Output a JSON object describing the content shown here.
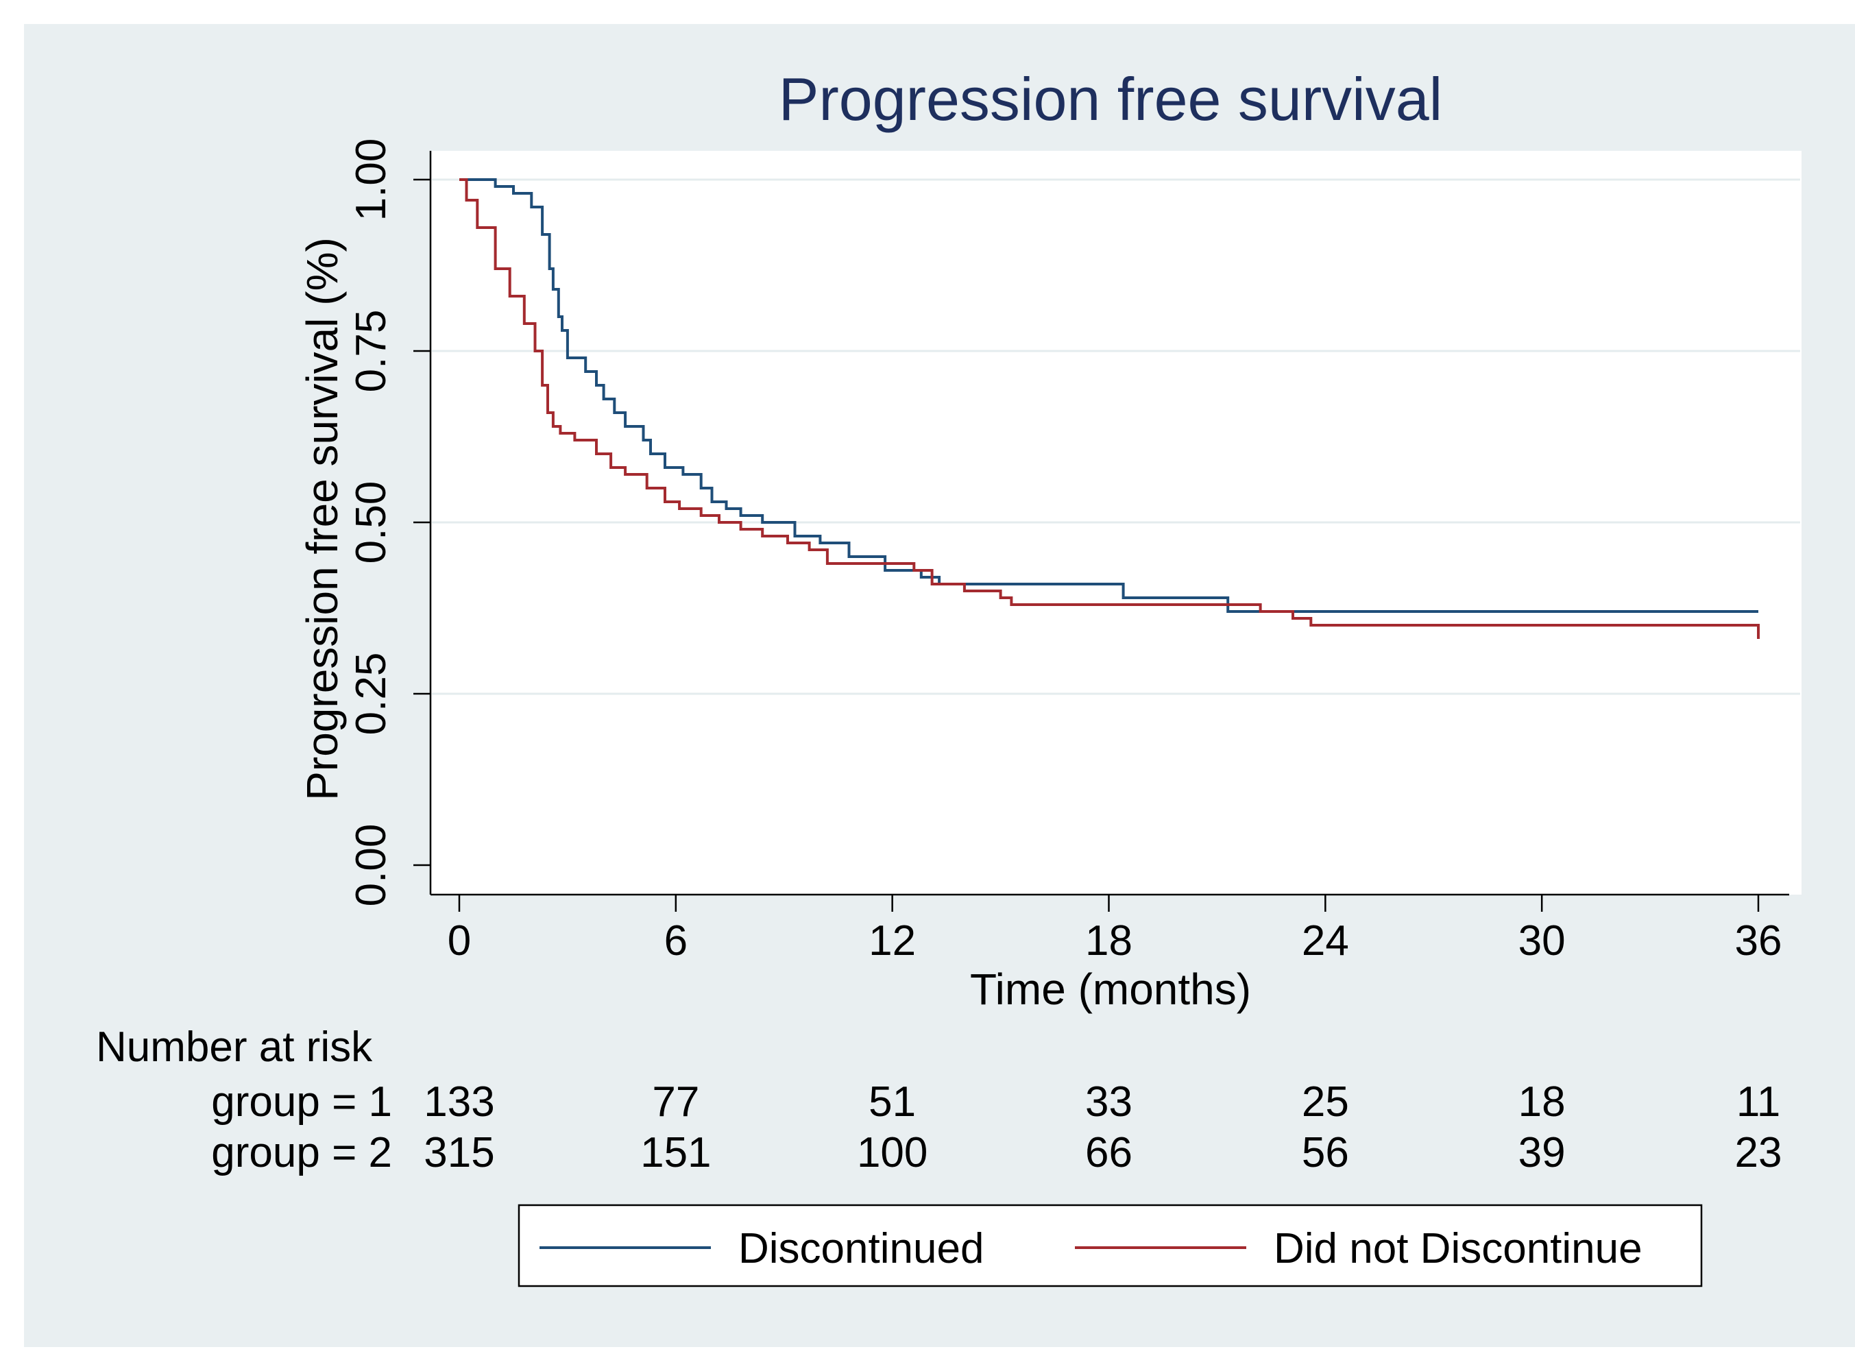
{
  "chart_data": {
    "type": "line",
    "subtype": "kaplan-meier",
    "title": "Progression free survival",
    "xlabel": "Time (months)",
    "ylabel": "Progression free survival (%)",
    "xlim": [
      0,
      36
    ],
    "ylim": [
      0,
      1
    ],
    "x_ticks": [
      0,
      6,
      12,
      18,
      24,
      30,
      36
    ],
    "x_tick_labels": [
      "0",
      "6",
      "12",
      "18",
      "24",
      "30",
      "36"
    ],
    "y_ticks": [
      0,
      0.25,
      0.5,
      0.75,
      1.0
    ],
    "y_tick_labels": [
      "0.00",
      "0.25",
      "0.50",
      "0.75",
      "1.00"
    ],
    "grid": "horizontal",
    "series": [
      {
        "name": "Discontinued",
        "color": "#1f4e79",
        "x": [
          0,
          0.7,
          1.0,
          1.5,
          2.0,
          2.3,
          2.5,
          2.6,
          2.75,
          2.85,
          3.0,
          3.2,
          3.5,
          3.8,
          4.0,
          4.3,
          4.6,
          5.1,
          5.3,
          5.7,
          6.2,
          6.7,
          7.0,
          7.4,
          7.8,
          8.4,
          9.3,
          10.0,
          10.8,
          11.8,
          12.8,
          13.3,
          18.0,
          18.4,
          21.1,
          21.3,
          36.0
        ],
        "y": [
          1.0,
          1.0,
          0.99,
          0.98,
          0.96,
          0.92,
          0.87,
          0.84,
          0.8,
          0.78,
          0.74,
          0.74,
          0.72,
          0.7,
          0.68,
          0.66,
          0.64,
          0.62,
          0.6,
          0.58,
          0.57,
          0.55,
          0.53,
          0.52,
          0.51,
          0.5,
          0.48,
          0.47,
          0.45,
          0.43,
          0.42,
          0.41,
          0.41,
          0.39,
          0.39,
          0.37,
          0.37
        ]
      },
      {
        "name": "Did not Discontinue",
        "color": "#a42a2f",
        "x": [
          0,
          0.2,
          0.5,
          1.0,
          1.4,
          1.8,
          2.1,
          2.3,
          2.45,
          2.6,
          2.8,
          3.2,
          3.8,
          4.2,
          4.6,
          5.2,
          5.7,
          6.1,
          6.7,
          7.2,
          7.8,
          8.4,
          9.1,
          9.7,
          10.2,
          11.0,
          12.6,
          13.1,
          14.0,
          15.0,
          15.3,
          21.5,
          22.2,
          23.1,
          23.6,
          24.8,
          35.9,
          36.0
        ],
        "y": [
          1.0,
          0.97,
          0.93,
          0.87,
          0.83,
          0.79,
          0.75,
          0.7,
          0.66,
          0.64,
          0.63,
          0.62,
          0.6,
          0.58,
          0.57,
          0.55,
          0.53,
          0.52,
          0.51,
          0.5,
          0.49,
          0.48,
          0.47,
          0.46,
          0.44,
          0.44,
          0.43,
          0.41,
          0.4,
          0.39,
          0.38,
          0.38,
          0.37,
          0.36,
          0.35,
          0.35,
          0.35,
          0.33
        ]
      }
    ],
    "risk_table": {
      "title": "Number at risk",
      "rows": [
        {
          "label": "group = 1",
          "values": [
            "133",
            "77",
            "51",
            "33",
            "25",
            "18",
            "11"
          ]
        },
        {
          "label": "group = 2",
          "values": [
            "315",
            "151",
            "100",
            "66",
            "56",
            "39",
            "23"
          ]
        }
      ]
    },
    "legend": {
      "position": "bottom",
      "entries": [
        "Discontinued",
        "Did not Discontinue"
      ]
    },
    "colors": {
      "outer_background": "#e9eff1",
      "plot_background": "#ffffff",
      "grid": "#e4ecee",
      "title": "#1e2f5e",
      "axis": "#000000"
    }
  }
}
